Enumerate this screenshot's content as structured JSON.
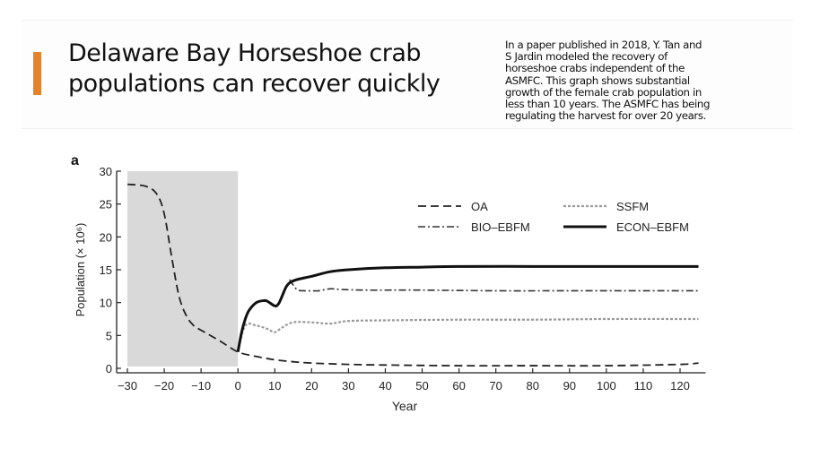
{
  "slide": {
    "title_line1": "Delaware Bay Horseshoe crab",
    "title_line2": "populations can recover quickly",
    "accent_color": "#e5822c",
    "note_lines": [
      "In a paper published in 2018, Y. Tan and",
      "S Jardin  modeled the recovery of",
      "horseshoe crabs independent of the",
      "ASMFC. This graph shows substantial",
      "growth of  the female crab population in",
      "less than 10 years. The ASMFC has being",
      "regulating the harvest for over 20 years."
    ]
  },
  "chart_data": {
    "type": "line",
    "panel_label": "a",
    "title": "",
    "xlabel": "Year",
    "ylabel": "Population (× 10⁶)",
    "xlim": [
      -30,
      125
    ],
    "ylim": [
      0,
      30
    ],
    "xticks": [
      -30,
      -20,
      -10,
      0,
      10,
      20,
      30,
      40,
      50,
      60,
      70,
      80,
      90,
      100,
      110,
      120
    ],
    "xtick_labels": [
      "−30",
      "−20",
      "−10",
      "0",
      "10",
      "20",
      "30",
      "40",
      "50",
      "60",
      "70",
      "80",
      "90",
      "100",
      "110",
      "120"
    ],
    "yticks": [
      0,
      5,
      10,
      15,
      20,
      25,
      30
    ],
    "grid": false,
    "shaded_region": {
      "x_from": -30,
      "x_to": 0,
      "color": "#d9d9d9"
    },
    "legend_position": "upper right",
    "series": [
      {
        "name": "OA",
        "style": "dashed",
        "x": [
          -30,
          -25,
          -22,
          -20,
          -18,
          -16,
          -14,
          -12,
          -10,
          -5,
          0,
          5,
          10,
          15,
          20,
          30,
          40,
          60,
          80,
          100,
          120,
          125
        ],
        "values": [
          28,
          27.7,
          26.5,
          23.5,
          17,
          11,
          8,
          6.5,
          5.8,
          4.2,
          2.5,
          1.8,
          1.3,
          1.0,
          0.8,
          0.6,
          0.5,
          0.4,
          0.4,
          0.4,
          0.6,
          0.8
        ]
      },
      {
        "name": "SSFM",
        "style": "dotted",
        "x": [
          0,
          2,
          5,
          8,
          10,
          12,
          15,
          20,
          25,
          30,
          40,
          60,
          80,
          100,
          125
        ],
        "values": [
          2.5,
          6.5,
          6.5,
          6.0,
          5.5,
          6.2,
          7.0,
          7.0,
          6.8,
          7.2,
          7.3,
          7.4,
          7.4,
          7.5,
          7.5
        ]
      },
      {
        "name": "BIO-EBFM",
        "style": "dash-dot",
        "x": [
          14,
          16,
          18,
          20,
          22,
          25,
          28,
          35,
          50,
          70,
          90,
          110,
          125
        ],
        "values": [
          13.5,
          12.0,
          11.8,
          11.8,
          11.8,
          12.1,
          12.0,
          11.9,
          11.9,
          11.8,
          11.8,
          11.8,
          11.8
        ]
      },
      {
        "name": "ECON-EBFM",
        "style": "solid-thick",
        "x": [
          0,
          1,
          2,
          3,
          5,
          7,
          8,
          10,
          11,
          12,
          13,
          14,
          16,
          20,
          25,
          30,
          40,
          50,
          60,
          80,
          100,
          125
        ],
        "values": [
          2.5,
          5.5,
          7.5,
          8.8,
          10.0,
          10.3,
          10.2,
          9.5,
          9.8,
          11.0,
          12.3,
          13.0,
          13.5,
          14.0,
          14.7,
          15.0,
          15.3,
          15.4,
          15.5,
          15.5,
          15.5,
          15.5
        ]
      }
    ]
  }
}
